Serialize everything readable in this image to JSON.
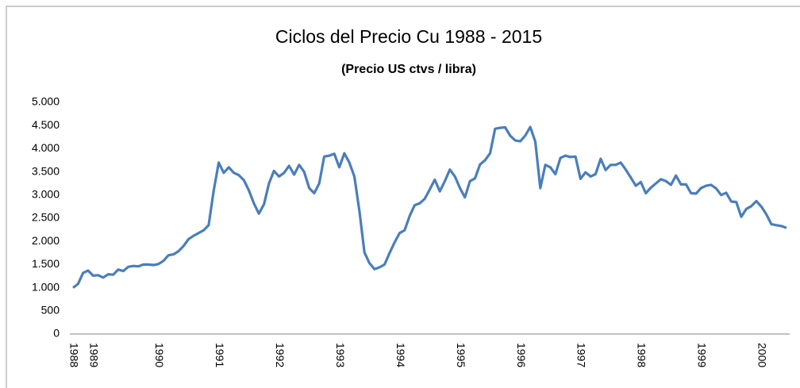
{
  "chart_data": {
    "type": "line",
    "title": "Ciclos del Precio Cu 1988 - 2015",
    "subtitle": "(Precio US ctvs / libra)",
    "categories": [
      "1988",
      null,
      null,
      null,
      "1989",
      null,
      null,
      null,
      null,
      null,
      null,
      null,
      null,
      null,
      null,
      null,
      null,
      "1990",
      null,
      null,
      null,
      null,
      null,
      null,
      null,
      null,
      null,
      null,
      null,
      "1991",
      null,
      null,
      null,
      null,
      null,
      null,
      null,
      null,
      null,
      null,
      null,
      "1992",
      null,
      null,
      null,
      null,
      null,
      null,
      null,
      null,
      null,
      null,
      null,
      "1993",
      null,
      null,
      null,
      null,
      null,
      null,
      null,
      null,
      null,
      null,
      null,
      "1994",
      null,
      null,
      null,
      null,
      null,
      null,
      null,
      null,
      null,
      null,
      null,
      "1995",
      null,
      null,
      null,
      null,
      null,
      null,
      null,
      null,
      null,
      null,
      null,
      "1996",
      null,
      null,
      null,
      null,
      null,
      null,
      null,
      null,
      null,
      null,
      null,
      "1997",
      null,
      null,
      null,
      null,
      null,
      null,
      null,
      null,
      null,
      null,
      null,
      "1998",
      null,
      null,
      null,
      null,
      null,
      null,
      null,
      null,
      null,
      null,
      null,
      "1999",
      null,
      null,
      null,
      null,
      null,
      null,
      null,
      null,
      null,
      null,
      null,
      "2000",
      null,
      null,
      null,
      null,
      null
    ],
    "series": [
      {
        "name": "Precio Cu",
        "color": "#4a7ebb",
        "values": [
          1000,
          1080,
          1320,
          1370,
          1260,
          1270,
          1220,
          1290,
          1280,
          1390,
          1360,
          1450,
          1470,
          1460,
          1500,
          1500,
          1490,
          1510,
          1580,
          1700,
          1720,
          1790,
          1900,
          2050,
          2120,
          2180,
          2240,
          2350,
          3100,
          3700,
          3480,
          3600,
          3480,
          3430,
          3320,
          3100,
          2820,
          2600,
          2800,
          3250,
          3520,
          3400,
          3480,
          3630,
          3440,
          3650,
          3500,
          3150,
          3040,
          3250,
          3830,
          3850,
          3890,
          3600,
          3900,
          3700,
          3400,
          2650,
          1760,
          1530,
          1400,
          1440,
          1500,
          1750,
          1980,
          2180,
          2240,
          2550,
          2780,
          2820,
          2920,
          3120,
          3330,
          3080,
          3300,
          3550,
          3400,
          3150,
          2950,
          3300,
          3360,
          3660,
          3750,
          3900,
          4430,
          4450,
          4460,
          4280,
          4180,
          4160,
          4280,
          4470,
          4150,
          3150,
          3650,
          3600,
          3450,
          3800,
          3850,
          3820,
          3830,
          3350,
          3490,
          3400,
          3450,
          3780,
          3540,
          3650,
          3650,
          3700,
          3550,
          3380,
          3200,
          3280,
          3040,
          3160,
          3250,
          3340,
          3300,
          3220,
          3420,
          3230,
          3230,
          3040,
          3030,
          3150,
          3200,
          3220,
          3140,
          3000,
          3050,
          2860,
          2850,
          2530,
          2700,
          2760,
          2870,
          2750,
          2580,
          2370,
          2350,
          2330,
          2290
        ]
      }
    ],
    "ylim": [
      0,
      5000
    ],
    "yticks": [
      0,
      500,
      {
        "value": 1000,
        "label": "1.000"
      },
      {
        "value": 1500,
        "label": "1.500"
      },
      {
        "value": 2000,
        "label": "2.000"
      },
      {
        "value": 2500,
        "label": "2.500"
      },
      {
        "value": 3000,
        "label": "3.000"
      },
      {
        "value": 3500,
        "label": "3.500"
      },
      {
        "value": 4000,
        "label": "4.000"
      },
      {
        "value": 4500,
        "label": "4.500"
      },
      {
        "value": 5000,
        "label": "5.000"
      }
    ],
    "grid": false
  }
}
